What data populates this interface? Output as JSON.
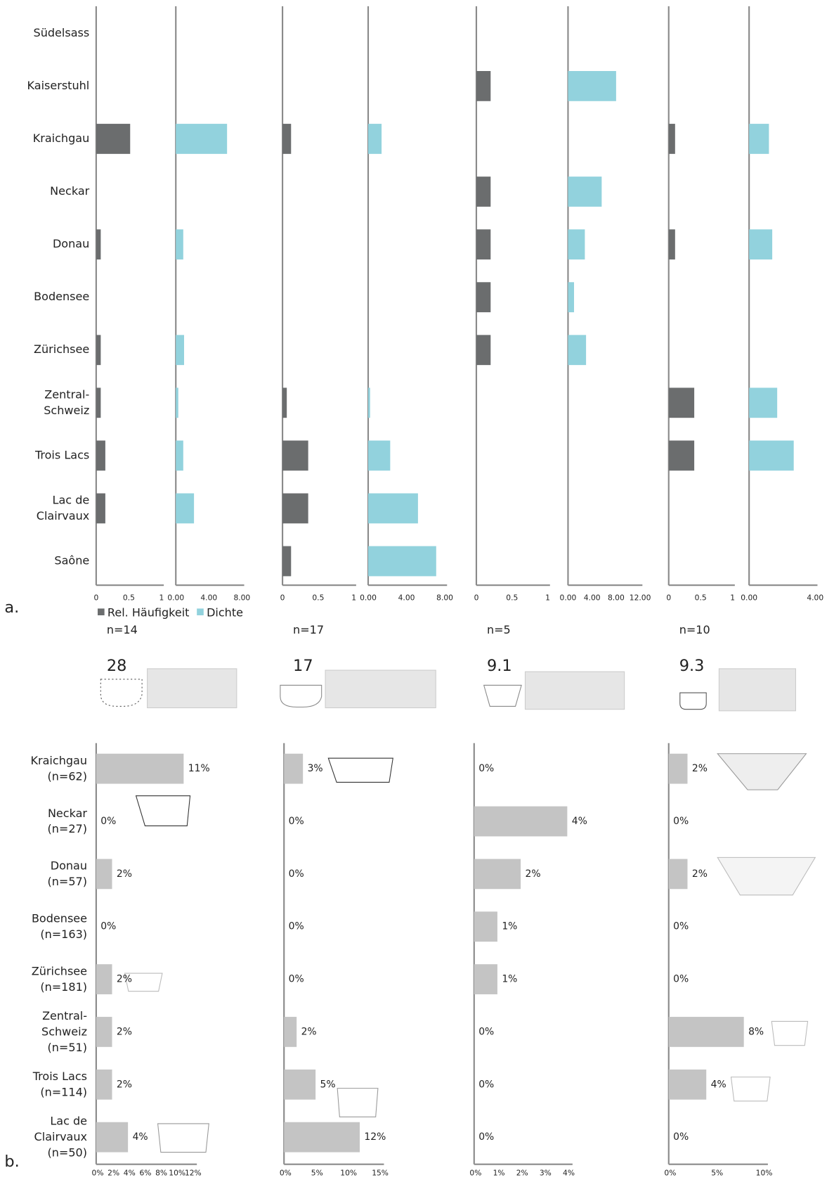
{
  "chart_data": [
    {
      "type": "bar",
      "label": "a.",
      "categories": [
        "Südelsass",
        "Kaiserstuhl",
        "Kraichgau",
        "Neckar",
        "Donau",
        "Bodensee",
        "Zürichsee",
        "Zentral-\nSchweiz",
        "Trois Lacs",
        "Lac de\nClairvaux",
        "Saône"
      ],
      "series": [
        {
          "name": "Rel. Häufigkeit",
          "color": "#6b6d6e"
        },
        {
          "name": "Dichte",
          "color": "#92d2dd"
        }
      ],
      "panels": [
        {
          "sample": "n=14",
          "score": 28,
          "series": [
            {
              "values": [
                null,
                null,
                0.52,
                null,
                0.07,
                null,
                0.07,
                0.07,
                0.14,
                0.14,
                null
              ],
              "xlim": [
                0,
                1
              ],
              "xticks": [
                0,
                0.5,
                1
              ]
            },
            {
              "values": [
                null,
                null,
                6.2,
                null,
                0.9,
                null,
                1.0,
                0.3,
                0.9,
                2.2,
                null
              ],
              "xlim": [
                0,
                8
              ],
              "xticks": [
                {
                  "value": 0,
                  "label": "0.00"
                },
                {
                  "value": 4,
                  "label": "4.00"
                },
                {
                  "value": 8,
                  "label": "8.00"
                }
              ]
            }
          ]
        },
        {
          "sample": "n=17",
          "score": 17,
          "series": [
            {
              "values": [
                null,
                null,
                0.12,
                null,
                null,
                null,
                null,
                0.06,
                0.36,
                0.36,
                0.12
              ],
              "xlim": [
                0,
                1
              ],
              "xticks": [
                0,
                0.5,
                1
              ]
            },
            {
              "values": [
                null,
                null,
                1.4,
                null,
                null,
                null,
                null,
                0.2,
                2.3,
                5.2,
                7.1
              ],
              "xlim": [
                0,
                8
              ],
              "xticks": [
                {
                  "value": 0,
                  "label": "0.00"
                },
                {
                  "value": 4,
                  "label": "4.00"
                },
                {
                  "value": 8,
                  "label": "8.00"
                }
              ]
            }
          ]
        },
        {
          "sample": "n=5",
          "score": 9.1,
          "series": [
            {
              "values": [
                null,
                0.2,
                null,
                0.2,
                0.2,
                0.2,
                0.2,
                null,
                null,
                null,
                null
              ],
              "xlim": [
                0,
                1
              ],
              "xticks": [
                0,
                0.5,
                1
              ]
            },
            {
              "values": [
                null,
                8.0,
                null,
                5.6,
                2.8,
                1.0,
                3.0,
                null,
                null,
                null,
                null
              ],
              "xlim": [
                0,
                12
              ],
              "xticks": [
                {
                  "value": 0,
                  "label": "0.00"
                },
                {
                  "value": 4,
                  "label": "4.00"
                },
                {
                  "value": 8,
                  "label": "8.00"
                },
                {
                  "value": 12,
                  "label": "12.00"
                }
              ]
            }
          ]
        },
        {
          "sample": "n=10",
          "score": 9.3,
          "series": [
            {
              "values": [
                null,
                null,
                0.1,
                null,
                0.1,
                null,
                null,
                0.4,
                0.4,
                null,
                null
              ],
              "xlim": [
                0,
                1
              ],
              "xticks": [
                0,
                0.5,
                1
              ]
            },
            {
              "values": [
                null,
                null,
                1.2,
                null,
                1.4,
                null,
                null,
                1.7,
                2.7,
                null,
                null
              ],
              "xlim": [
                0,
                4
              ],
              "xticks": [
                {
                  "value": 0,
                  "label": "0.00"
                },
                {
                  "value": 4,
                  "label": "4.00"
                }
              ]
            }
          ]
        }
      ]
    },
    {
      "type": "bar",
      "label": "b.",
      "color": "#c4c4c4",
      "categories": [
        "Kraichgau\n(n=62)",
        "Neckar\n(n=27)",
        "Donau\n(n=57)",
        "Bodensee\n(n=163)",
        "Zürichsee\n(n=181)",
        "Zentral-\nSchweiz\n(n=51)",
        "Trois Lacs\n(n=114)",
        "Lac de\nClairvaux\n(n=50)"
      ],
      "panels": [
        {
          "values": [
            11,
            0,
            2,
            0,
            2,
            2,
            2,
            4
          ],
          "value_labels": [
            "11%",
            "0%",
            "2%",
            "0%",
            "2%",
            "2%",
            "2%",
            "4%"
          ],
          "xlim": [
            0,
            12
          ],
          "xticks": [
            {
              "value": 0,
              "label": "0%"
            },
            {
              "value": 2,
              "label": "2%"
            },
            {
              "value": 4,
              "label": "4%"
            },
            {
              "value": 6,
              "label": "6%"
            },
            {
              "value": 8,
              "label": "8%"
            },
            {
              "value": 10,
              "label": "10%"
            },
            {
              "value": 12,
              "label": "12%"
            }
          ]
        },
        {
          "values": [
            3,
            0,
            0,
            0,
            0,
            2,
            5,
            12
          ],
          "value_labels": [
            "3%",
            "0%",
            "0%",
            "0%",
            "0%",
            "2%",
            "5%",
            "12%"
          ],
          "xlim": [
            0,
            15
          ],
          "xticks": [
            {
              "value": 0,
              "label": "0%"
            },
            {
              "value": 5,
              "label": "5%"
            },
            {
              "value": 10,
              "label": "10%"
            },
            {
              "value": 15,
              "label": "15%"
            }
          ]
        },
        {
          "values": [
            0,
            4,
            2,
            1,
            1,
            0,
            0,
            0
          ],
          "value_labels": [
            "0%",
            "4%",
            "2%",
            "1%",
            "1%",
            "0%",
            "0%",
            "0%"
          ],
          "xlim": [
            0,
            4
          ],
          "xticks": [
            {
              "value": 0,
              "label": "0%"
            },
            {
              "value": 1,
              "label": "1%"
            },
            {
              "value": 2,
              "label": "2%"
            },
            {
              "value": 3,
              "label": "3%"
            },
            {
              "value": 4,
              "label": "4%"
            }
          ]
        },
        {
          "values": [
            2,
            0,
            2,
            0,
            0,
            8,
            4,
            0
          ],
          "value_labels": [
            "2%",
            "0%",
            "2%",
            "0%",
            "0%",
            "8%",
            "4%",
            "0%"
          ],
          "xlim": [
            0,
            10
          ],
          "xticks": [
            {
              "value": 0,
              "label": "0%"
            },
            {
              "value": 5,
              "label": "5%"
            },
            {
              "value": 10,
              "label": "10%"
            }
          ]
        }
      ]
    }
  ]
}
